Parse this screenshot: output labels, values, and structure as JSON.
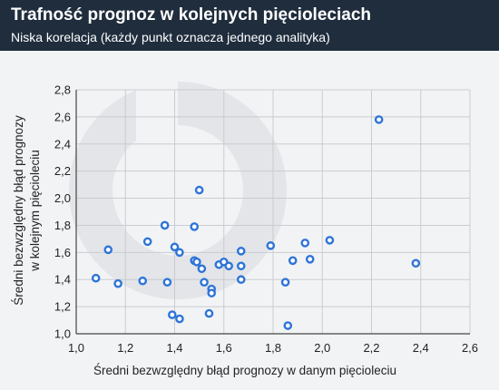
{
  "header": {
    "title": "Trafność prognoz w kolejnych pięcioleciach",
    "subtitle": "Niska korelacja (każdy punkt oznacza jednego analityka)"
  },
  "colors": {
    "header_bg": "#1f2d3d",
    "plot_bg": "#f2f3f5",
    "grid": "#c9ccd1",
    "point": "#2e74d8",
    "watermark": "#e2e4e7"
  },
  "chart_data": {
    "type": "scatter",
    "title": "Trafność prognoz w kolejnych pięcioleciach",
    "subtitle": "Niska korelacja (każdy punkt oznacza jednego analityka)",
    "xlabel": "Średni bezwzględny błąd prognozy w danym pięcioleciu",
    "ylabel_lines": [
      "Średni bezwzględny błąd prognozy",
      "w kolejnym pięcioleciu"
    ],
    "xlim": [
      1.0,
      2.6
    ],
    "ylim": [
      1.0,
      2.8
    ],
    "xticks": [
      1.0,
      1.2,
      1.4,
      1.6,
      1.8,
      2.0,
      2.2,
      2.4,
      2.6
    ],
    "yticks": [
      1.0,
      1.2,
      1.4,
      1.6,
      1.8,
      2.0,
      2.2,
      2.4,
      2.6,
      2.8
    ],
    "xtick_labels": [
      "1,0",
      "1,2",
      "1,4",
      "1,6",
      "1,8",
      "2,0",
      "2,2",
      "2,4",
      "2,6"
    ],
    "ytick_labels": [
      "1,0",
      "1,2",
      "1,4",
      "1,6",
      "1,8",
      "2,0",
      "2,2",
      "2,4",
      "2,6",
      "2,8"
    ],
    "grid": true,
    "points": [
      {
        "x": 1.08,
        "y": 1.41
      },
      {
        "x": 1.13,
        "y": 1.62
      },
      {
        "x": 1.17,
        "y": 1.37
      },
      {
        "x": 1.27,
        "y": 1.39
      },
      {
        "x": 1.29,
        "y": 1.68
      },
      {
        "x": 1.36,
        "y": 1.8
      },
      {
        "x": 1.37,
        "y": 1.38
      },
      {
        "x": 1.39,
        "y": 1.14
      },
      {
        "x": 1.4,
        "y": 1.64
      },
      {
        "x": 1.42,
        "y": 1.6
      },
      {
        "x": 1.42,
        "y": 1.11
      },
      {
        "x": 1.48,
        "y": 1.79
      },
      {
        "x": 1.48,
        "y": 1.54
      },
      {
        "x": 1.49,
        "y": 1.53
      },
      {
        "x": 1.5,
        "y": 2.06
      },
      {
        "x": 1.51,
        "y": 1.48
      },
      {
        "x": 1.52,
        "y": 1.38
      },
      {
        "x": 1.54,
        "y": 1.15
      },
      {
        "x": 1.55,
        "y": 1.33
      },
      {
        "x": 1.55,
        "y": 1.3
      },
      {
        "x": 1.58,
        "y": 1.51
      },
      {
        "x": 1.6,
        "y": 1.53
      },
      {
        "x": 1.62,
        "y": 1.5
      },
      {
        "x": 1.67,
        "y": 1.61
      },
      {
        "x": 1.67,
        "y": 1.5
      },
      {
        "x": 1.67,
        "y": 1.4
      },
      {
        "x": 1.79,
        "y": 1.65
      },
      {
        "x": 1.85,
        "y": 1.38
      },
      {
        "x": 1.86,
        "y": 1.06
      },
      {
        "x": 1.88,
        "y": 1.54
      },
      {
        "x": 1.93,
        "y": 1.67
      },
      {
        "x": 1.95,
        "y": 1.55
      },
      {
        "x": 2.03,
        "y": 1.69
      },
      {
        "x": 2.23,
        "y": 2.58
      },
      {
        "x": 2.38,
        "y": 1.52
      }
    ]
  }
}
